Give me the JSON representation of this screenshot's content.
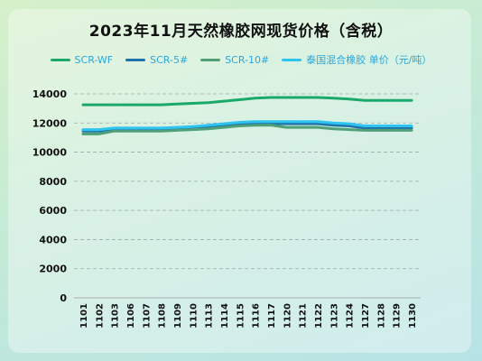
{
  "title": "2023年11月天然橡胶网现货价格（含税）",
  "colors": {
    "SCR-WF": "#1aa96a",
    "SCR-5#": "#1e73a8",
    "SCR-10#": "#4f9f79",
    "legend_text": "#2aa6d9"
  },
  "legend": [
    {
      "name": "SCR-WF",
      "color": "#1aa96a"
    },
    {
      "name": "SCR-5#",
      "color": "#1e73a8"
    },
    {
      "name": "SCR-10#",
      "color": "#4f9f79"
    },
    {
      "name": "泰国混合橡胶 单价（元/吨）",
      "color": "#2ec4ef"
    }
  ],
  "chart_data": {
    "type": "line",
    "title": "2023年11月天然橡胶网现货价格（含税）",
    "xlabel": "",
    "ylabel": "",
    "ylim": [
      0,
      14000
    ],
    "yticks": [
      0,
      2000,
      4000,
      6000,
      8000,
      10000,
      12000,
      14000
    ],
    "grid": "horizontal dashed",
    "legend_position": "top",
    "x": [
      "1101",
      "1102",
      "1103",
      "1106",
      "1107",
      "1108",
      "1109",
      "1110",
      "1113",
      "1114",
      "1115",
      "1116",
      "1117",
      "1120",
      "1121",
      "1122",
      "1123",
      "1124",
      "1127",
      "1128",
      "1129",
      "1130"
    ],
    "series": [
      {
        "name": "SCR-WF",
        "color": "#1aa96a",
        "values": [
          13250,
          13250,
          13250,
          13250,
          13250,
          13250,
          13300,
          13350,
          13400,
          13500,
          13600,
          13700,
          13750,
          13750,
          13750,
          13750,
          13700,
          13650,
          13550,
          13550,
          13550,
          13550
        ]
      },
      {
        "name": "SCR-5#",
        "color": "#1e73a8",
        "values": [
          11450,
          11450,
          11550,
          11550,
          11550,
          11550,
          11600,
          11650,
          11700,
          11800,
          11900,
          11950,
          11950,
          11950,
          11950,
          11950,
          11850,
          11800,
          11650,
          11650,
          11650,
          11650
        ]
      },
      {
        "name": "SCR-10#",
        "color": "#4f9f79",
        "values": [
          11250,
          11250,
          11450,
          11450,
          11450,
          11450,
          11500,
          11550,
          11600,
          11700,
          11800,
          11850,
          11850,
          11700,
          11700,
          11700,
          11600,
          11550,
          11500,
          11500,
          11500,
          11500
        ]
      },
      {
        "name": "泰国混合橡胶 单价（元/吨）",
        "color": "#2ec4ef",
        "values": [
          11550,
          11550,
          11650,
          11650,
          11650,
          11650,
          11700,
          11750,
          11850,
          11950,
          12050,
          12100,
          12100,
          12100,
          12100,
          12100,
          12000,
          11950,
          11800,
          11800,
          11800,
          11800
        ]
      }
    ]
  }
}
